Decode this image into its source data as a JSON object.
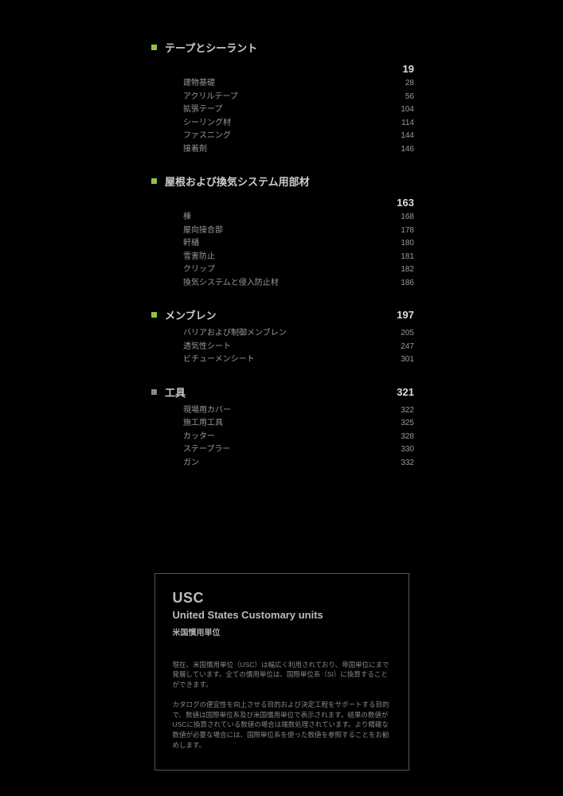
{
  "colors": {
    "background": "#000000",
    "marker_green": "#8cc63f",
    "marker_grey": "#888888",
    "text_heading": "#cccccc",
    "text_page_bold": "#dddddd",
    "text_item": "#999999",
    "box_border": "#555555",
    "box_heading": "#bbbbbb",
    "box_para": "#888888"
  },
  "sections": [
    {
      "marker": "green",
      "title": "テープとシーラント",
      "page": "19",
      "page_below": true,
      "items": [
        {
          "label": "建物基礎",
          "page": "28"
        },
        {
          "label": "アクリルテープ",
          "page": "56"
        },
        {
          "label": "拡張テープ",
          "page": "104"
        },
        {
          "label": "シーリング材",
          "page": "114"
        },
        {
          "label": "ファスニング",
          "page": "144"
        },
        {
          "label": "接着剤",
          "page": "146"
        }
      ]
    },
    {
      "marker": "green",
      "title": "屋根および換気システム用部材",
      "page": "163",
      "page_below": true,
      "items": [
        {
          "label": "棟",
          "page": "168"
        },
        {
          "label": "屋向接合部",
          "page": "178"
        },
        {
          "label": "軒樋",
          "page": "180"
        },
        {
          "label": "雪害防止",
          "page": "181"
        },
        {
          "label": "クリップ",
          "page": "182"
        },
        {
          "label": "換気システムと侵入防止材",
          "page": "186"
        }
      ]
    },
    {
      "marker": "green",
      "title": "メンブレン",
      "page": "197",
      "page_below": false,
      "items": [
        {
          "label": "バリアおよび制御メンブレン",
          "page": "205"
        },
        {
          "label": "透気性シート",
          "page": "247"
        },
        {
          "label": "ビチューメンシート",
          "page": "301"
        }
      ]
    },
    {
      "marker": "grey",
      "title": "工具",
      "page": "321",
      "page_below": false,
      "items": [
        {
          "label": "現場用カバー",
          "page": "322"
        },
        {
          "label": "施工用工具",
          "page": "325"
        },
        {
          "label": "カッター",
          "page": "328"
        },
        {
          "label": "ステープラー",
          "page": "330"
        },
        {
          "label": "ガン",
          "page": "332"
        }
      ]
    }
  ],
  "usc": {
    "title": "USC",
    "subtitle": "United States Customary units",
    "jp_label": "米国慣用単位",
    "para1": "現在、米国慣用単位（USC）は幅広く利用されており、帝国単位にまで発展しています。全ての慣用単位は、国際単位系（SI）に換算することができます。",
    "para2": "カタログの便宜性を向上させる目的および決定工程をサポートする目的で、数値は国際単位系及び米国慣用単位で表示されます。結果の数値がUSCに換算されている数値の場合は端数処理されています。より精確な数値が必要な場合には、国際単位系を使った数値を参照することをお勧めします。"
  }
}
